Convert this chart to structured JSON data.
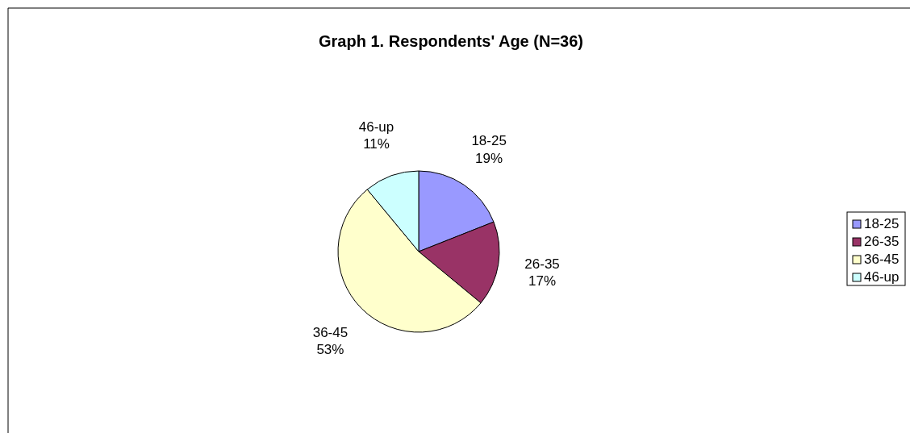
{
  "chart_data": {
    "type": "pie",
    "title": "Graph 1.  Respondents' Age (N=36)",
    "categories": [
      "18-25",
      "26-35",
      "36-45",
      "46-up"
    ],
    "values": [
      19,
      17,
      53,
      11
    ],
    "value_labels": [
      "19%",
      "17%",
      "53%",
      "11%"
    ],
    "colors": [
      "#9999ff",
      "#993366",
      "#ffffcc",
      "#ccffff"
    ],
    "legend": "right"
  }
}
